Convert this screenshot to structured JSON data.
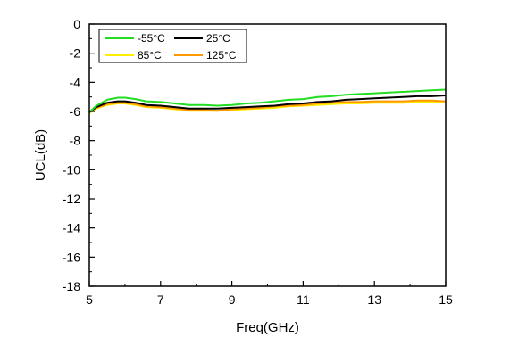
{
  "chart_data": {
    "type": "line",
    "xlabel": "Freq(GHz)",
    "ylabel": "UCL(dB)",
    "xlim": [
      5,
      15
    ],
    "ylim": [
      -18,
      0
    ],
    "xticks": [
      5,
      7,
      9,
      11,
      13,
      15
    ],
    "yticks": [
      0,
      -2,
      -4,
      -6,
      -8,
      -10,
      -12,
      -14,
      -16,
      -18
    ],
    "grid": false,
    "legend_position": "top-left",
    "series": [
      {
        "name": "-55°C",
        "color": "#22dd22",
        "x": [
          5.0,
          5.2,
          5.5,
          5.8,
          6.0,
          6.3,
          6.6,
          7.0,
          7.4,
          7.8,
          8.2,
          8.6,
          9.0,
          9.4,
          9.8,
          10.2,
          10.6,
          11.0,
          11.4,
          11.8,
          12.2,
          12.6,
          13.0,
          13.4,
          13.8,
          14.2,
          14.6,
          15.0
        ],
        "y": [
          -6.05,
          -5.6,
          -5.2,
          -5.05,
          -5.05,
          -5.15,
          -5.3,
          -5.35,
          -5.45,
          -5.55,
          -5.55,
          -5.6,
          -5.55,
          -5.45,
          -5.4,
          -5.3,
          -5.2,
          -5.15,
          -5.0,
          -4.95,
          -4.85,
          -4.8,
          -4.75,
          -4.7,
          -4.65,
          -4.6,
          -4.55,
          -4.5
        ]
      },
      {
        "name": "25°C",
        "color": "#000000",
        "x": [
          5.0,
          5.2,
          5.5,
          5.8,
          6.0,
          6.3,
          6.6,
          7.0,
          7.4,
          7.8,
          8.2,
          8.6,
          9.0,
          9.4,
          9.8,
          10.2,
          10.6,
          11.0,
          11.4,
          11.8,
          12.2,
          12.6,
          13.0,
          13.4,
          13.8,
          14.2,
          14.6,
          15.0
        ],
        "y": [
          -6.05,
          -5.7,
          -5.4,
          -5.3,
          -5.3,
          -5.4,
          -5.55,
          -5.6,
          -5.7,
          -5.8,
          -5.8,
          -5.8,
          -5.75,
          -5.7,
          -5.65,
          -5.6,
          -5.5,
          -5.45,
          -5.35,
          -5.3,
          -5.2,
          -5.15,
          -5.1,
          -5.05,
          -5.0,
          -4.95,
          -4.95,
          -4.9
        ]
      },
      {
        "name": "85°C",
        "color": "#ffee00",
        "x": [
          5.0,
          5.2,
          5.5,
          5.8,
          6.0,
          6.3,
          6.6,
          7.0,
          7.4,
          7.8,
          8.2,
          8.6,
          9.0,
          9.4,
          9.8,
          10.2,
          10.6,
          11.0,
          11.4,
          11.8,
          12.2,
          12.6,
          13.0,
          13.4,
          13.8,
          14.2,
          14.6,
          15.0
        ],
        "y": [
          -6.1,
          -5.8,
          -5.55,
          -5.45,
          -5.45,
          -5.55,
          -5.7,
          -5.75,
          -5.85,
          -5.95,
          -5.95,
          -5.95,
          -5.9,
          -5.85,
          -5.8,
          -5.75,
          -5.65,
          -5.6,
          -5.55,
          -5.5,
          -5.45,
          -5.45,
          -5.4,
          -5.4,
          -5.4,
          -5.35,
          -5.35,
          -5.35
        ]
      },
      {
        "name": "125°C",
        "color": "#ff9900",
        "x": [
          5.0,
          5.2,
          5.5,
          5.8,
          6.0,
          6.3,
          6.6,
          7.0,
          7.4,
          7.8,
          8.2,
          8.6,
          9.0,
          9.4,
          9.8,
          10.2,
          10.6,
          11.0,
          11.4,
          11.8,
          12.2,
          12.6,
          13.0,
          13.4,
          13.8,
          14.2,
          14.6,
          15.0
        ],
        "y": [
          -6.05,
          -5.75,
          -5.5,
          -5.4,
          -5.4,
          -5.5,
          -5.65,
          -5.7,
          -5.8,
          -5.9,
          -5.9,
          -5.95,
          -5.85,
          -5.8,
          -5.75,
          -5.65,
          -5.6,
          -5.55,
          -5.45,
          -5.4,
          -5.35,
          -5.35,
          -5.3,
          -5.3,
          -5.3,
          -5.25,
          -5.25,
          -5.3
        ]
      }
    ]
  }
}
